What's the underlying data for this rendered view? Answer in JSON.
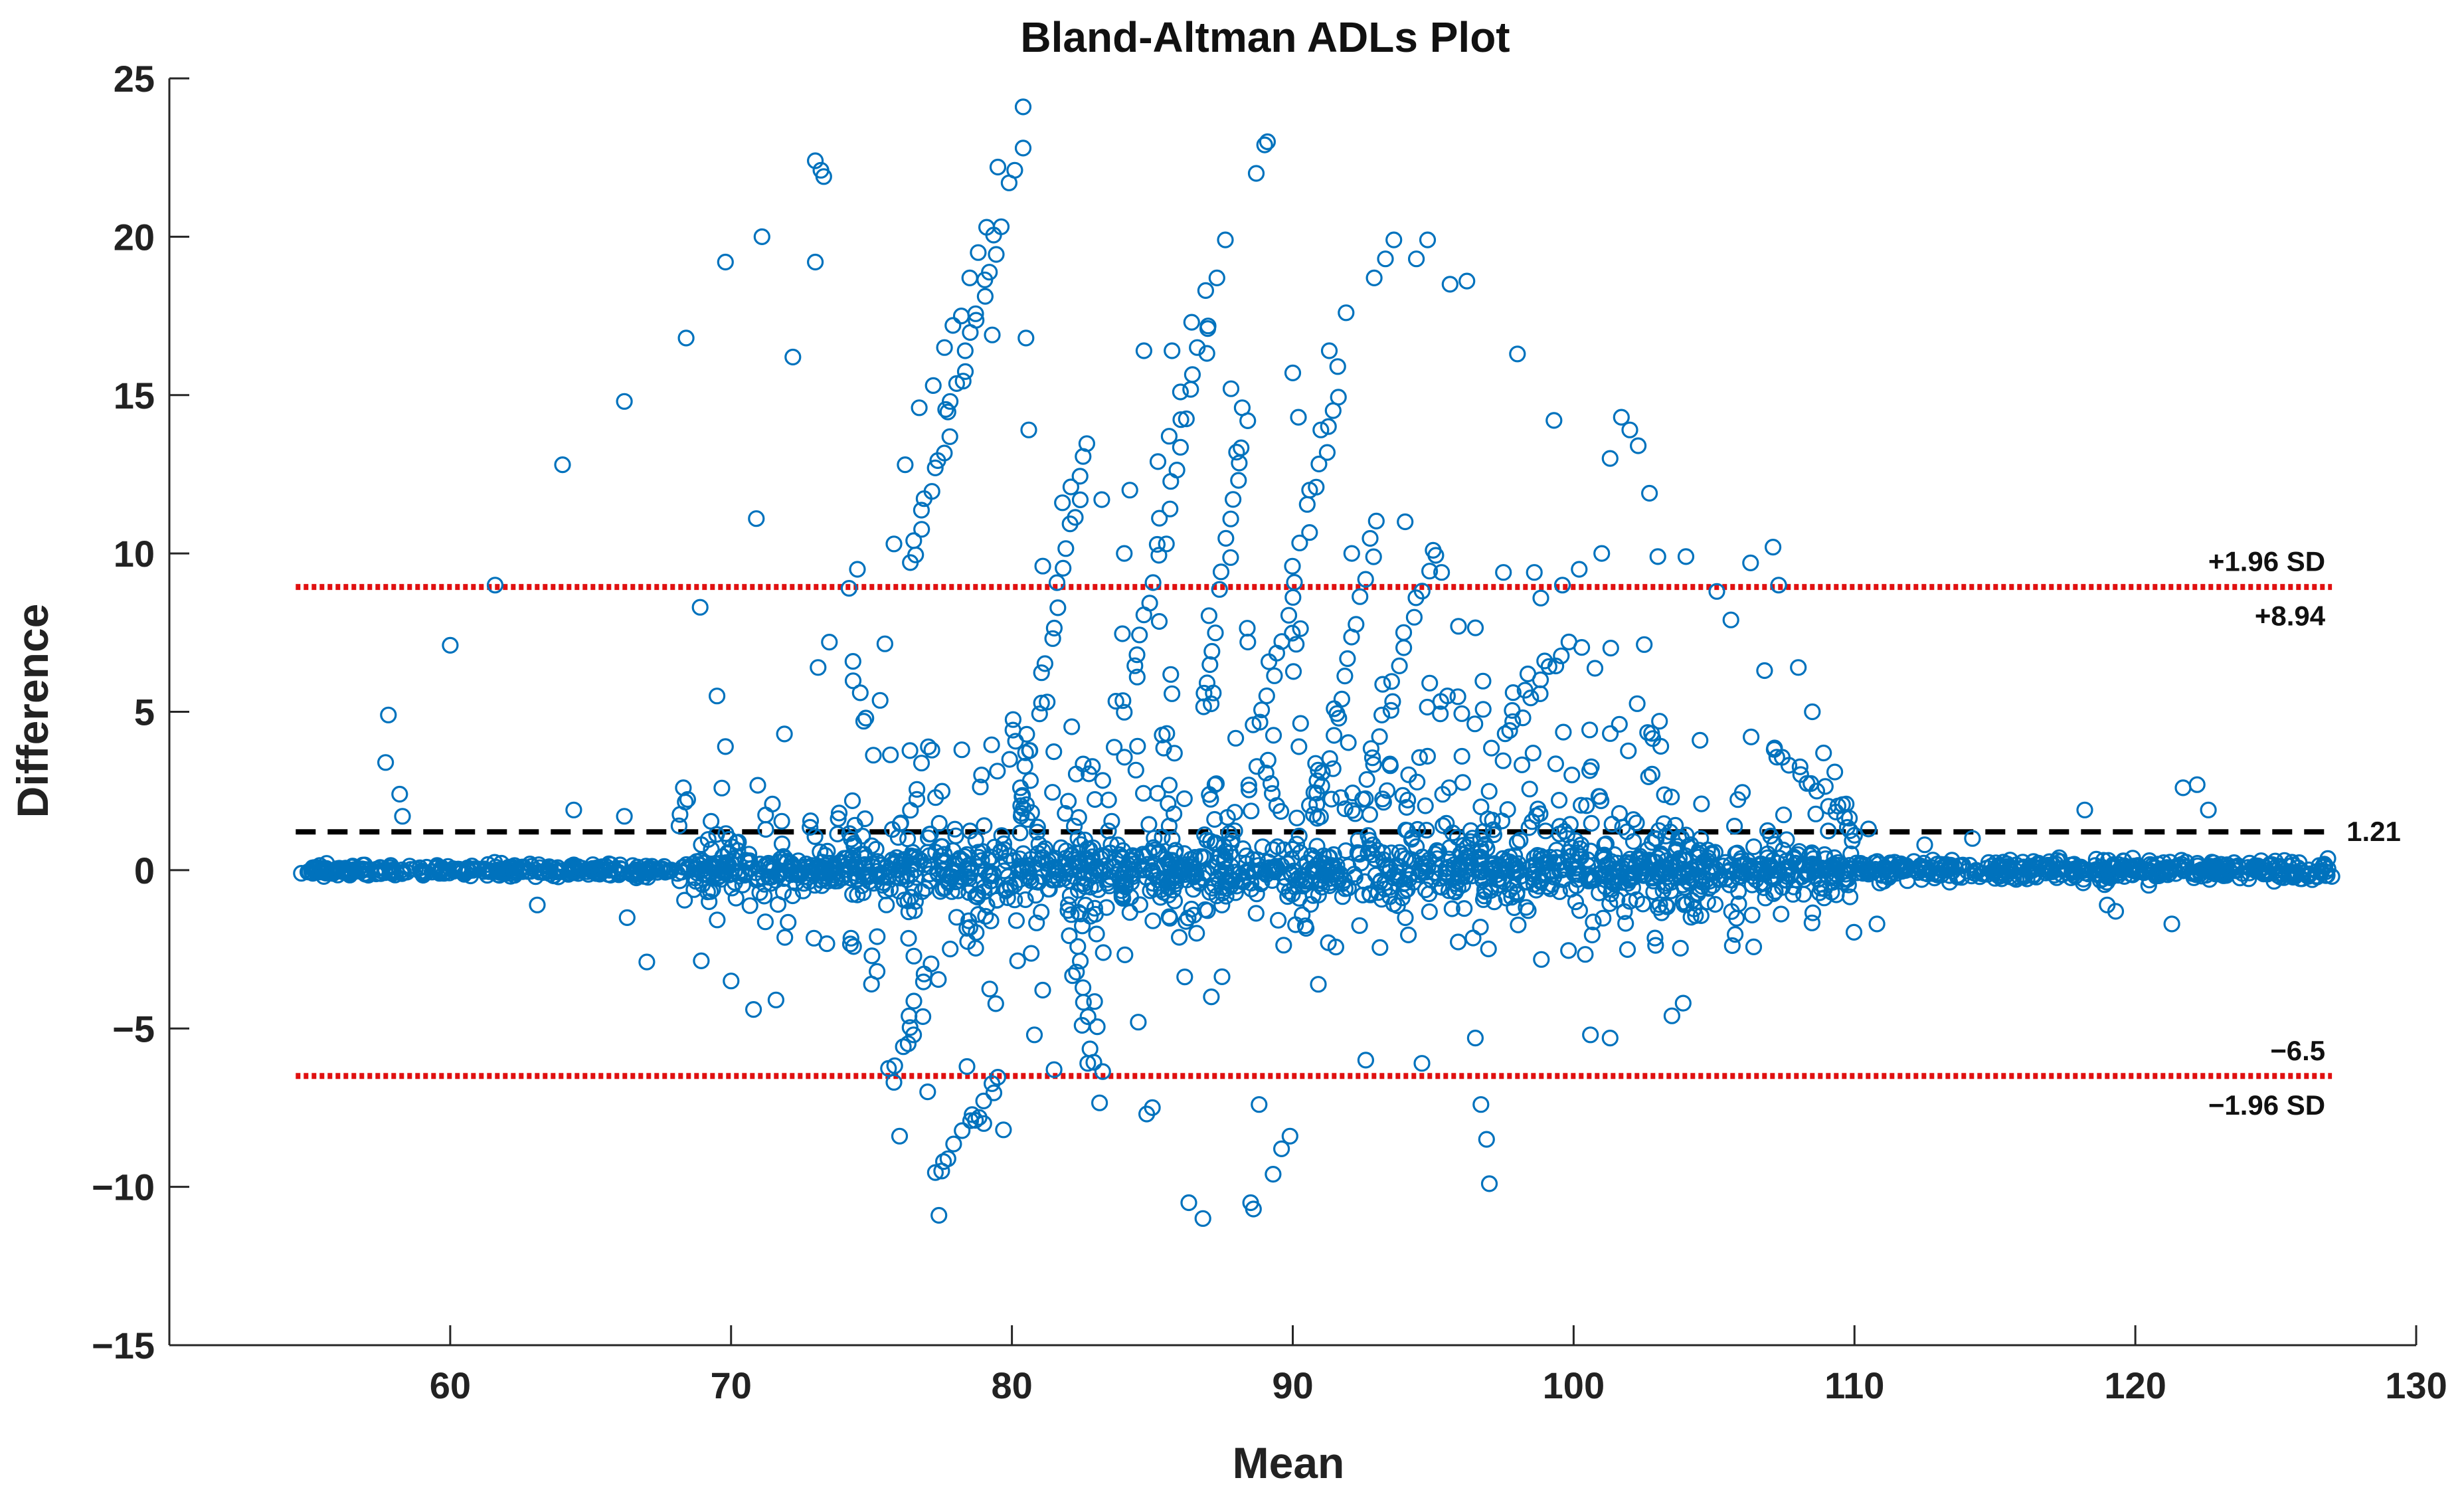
{
  "chart_data": {
    "type": "scatter",
    "title": "Bland-Altman ADLs Plot",
    "xlabel": "Mean",
    "ylabel": "Difference",
    "xlim": [
      50,
      130
    ],
    "ylim": [
      -15,
      25
    ],
    "xticks": [
      60,
      70,
      80,
      90,
      100,
      110,
      120,
      130
    ],
    "yticks": [
      -15,
      -10,
      -5,
      0,
      5,
      10,
      15,
      20,
      25
    ],
    "grid": false,
    "marker": "open-circle",
    "marker_color": "#0072BD",
    "reference_lines": [
      {
        "id": "upper",
        "y": 8.94,
        "style": "dotted",
        "color": "#E01010",
        "label_top": "+1.96 SD",
        "label_bottom": "+8.94"
      },
      {
        "id": "mean",
        "y": 1.21,
        "style": "dashed",
        "color": "#000000",
        "label_right": "1.21"
      },
      {
        "id": "lower",
        "y": -6.5,
        "style": "dotted",
        "color": "#E01010",
        "label_top": "−6.5",
        "label_bottom": "−1.96 SD"
      }
    ],
    "ref_line_x_range": [
      54.5,
      127
    ],
    "points_note": "approx. 3000 open-circle points; outliers listed below, dense band near zero",
    "outliers": [
      [
        54.7,
        -0.1
      ],
      [
        55.5,
        -0.2
      ],
      [
        56.5,
        0.1
      ],
      [
        57.8,
        4.9
      ],
      [
        57.7,
        3.4
      ],
      [
        58.2,
        2.4
      ],
      [
        58.3,
        1.7
      ],
      [
        60.0,
        7.1
      ],
      [
        61.6,
        9.0
      ],
      [
        63.1,
        -1.1
      ],
      [
        64.0,
        12.8
      ],
      [
        64.4,
        1.9
      ],
      [
        66.2,
        14.8
      ],
      [
        66.2,
        1.7
      ],
      [
        66.3,
        -1.5
      ],
      [
        67.0,
        -2.9
      ],
      [
        68.3,
        2.6
      ],
      [
        68.4,
        16.8
      ],
      [
        68.9,
        8.3
      ],
      [
        69.5,
        5.5
      ],
      [
        69.8,
        3.9
      ],
      [
        69.8,
        19.2
      ],
      [
        70.0,
        -3.5
      ],
      [
        70.8,
        -4.4
      ],
      [
        70.9,
        11.1
      ],
      [
        71.1,
        20.0
      ],
      [
        71.6,
        -4.1
      ],
      [
        71.9,
        4.3
      ],
      [
        72.2,
        16.2
      ],
      [
        73.0,
        19.2
      ],
      [
        73.0,
        22.4
      ],
      [
        73.2,
        22.1
      ],
      [
        73.3,
        21.9
      ],
      [
        73.5,
        7.2
      ],
      [
        73.1,
        6.4
      ],
      [
        74.2,
        8.9
      ],
      [
        74.5,
        9.5
      ],
      [
        74.6,
        5.6
      ],
      [
        74.8,
        4.8
      ],
      [
        75.0,
        -3.6
      ],
      [
        75.2,
        -3.2
      ],
      [
        75.8,
        10.3
      ],
      [
        75.8,
        -6.7
      ],
      [
        76.0,
        -8.4
      ],
      [
        76.2,
        12.8
      ],
      [
        76.5,
        -5.2
      ],
      [
        76.7,
        14.6
      ],
      [
        77.0,
        -7.0
      ],
      [
        77.2,
        15.3
      ],
      [
        77.5,
        -9.5
      ],
      [
        77.4,
        -10.9
      ],
      [
        77.6,
        16.5
      ],
      [
        77.8,
        14.8
      ],
      [
        77.9,
        17.2
      ],
      [
        78.2,
        17.5
      ],
      [
        78.4,
        -6.2
      ],
      [
        78.5,
        18.7
      ],
      [
        78.7,
        -7.9
      ],
      [
        78.8,
        19.5
      ],
      [
        79.0,
        -8.0
      ],
      [
        79.1,
        20.3
      ],
      [
        79.3,
        16.9
      ],
      [
        79.5,
        22.2
      ],
      [
        79.7,
        -8.2
      ],
      [
        79.9,
        21.7
      ],
      [
        80.1,
        22.1
      ],
      [
        80.4,
        22.8
      ],
      [
        80.4,
        24.1
      ],
      [
        80.5,
        16.8
      ],
      [
        80.6,
        13.9
      ],
      [
        80.8,
        -5.2
      ],
      [
        81.1,
        9.6
      ],
      [
        81.5,
        -6.3
      ],
      [
        81.8,
        11.6
      ],
      [
        82.1,
        12.1
      ],
      [
        82.5,
        -4.9
      ],
      [
        82.7,
        -6.1
      ],
      [
        83.2,
        11.7
      ],
      [
        84.0,
        10.0
      ],
      [
        84.2,
        12.0
      ],
      [
        84.5,
        -4.8
      ],
      [
        84.8,
        -7.7
      ],
      [
        84.7,
        16.4
      ],
      [
        85.0,
        -7.5
      ],
      [
        85.2,
        12.9
      ],
      [
        85.5,
        10.3
      ],
      [
        85.6,
        13.7
      ],
      [
        85.7,
        16.4
      ],
      [
        86.0,
        15.1
      ],
      [
        86.3,
        -10.5
      ],
      [
        86.4,
        17.3
      ],
      [
        86.6,
        16.5
      ],
      [
        86.8,
        -11.0
      ],
      [
        86.9,
        18.3
      ],
      [
        87.1,
        -4.0
      ],
      [
        87.3,
        18.7
      ],
      [
        87.6,
        19.9
      ],
      [
        87.8,
        15.2
      ],
      [
        88.0,
        13.2
      ],
      [
        88.2,
        14.6
      ],
      [
        88.5,
        -10.5
      ],
      [
        88.6,
        -10.7
      ],
      [
        88.7,
        22.0
      ],
      [
        88.8,
        -7.4
      ],
      [
        89.0,
        22.9
      ],
      [
        89.1,
        23.0
      ],
      [
        89.3,
        -9.6
      ],
      [
        89.6,
        -8.8
      ],
      [
        89.9,
        -8.4
      ],
      [
        90.0,
        15.7
      ],
      [
        90.2,
        14.3
      ],
      [
        90.6,
        12.0
      ],
      [
        91.0,
        13.9
      ],
      [
        91.3,
        16.4
      ],
      [
        91.6,
        15.9
      ],
      [
        91.9,
        17.6
      ],
      [
        92.1,
        10.0
      ],
      [
        92.6,
        -6.0
      ],
      [
        92.9,
        18.7
      ],
      [
        93.3,
        19.3
      ],
      [
        93.6,
        19.9
      ],
      [
        94.0,
        11.0
      ],
      [
        94.4,
        19.3
      ],
      [
        94.6,
        -6.1
      ],
      [
        94.8,
        19.9
      ],
      [
        95.0,
        10.1
      ],
      [
        95.3,
        9.4
      ],
      [
        95.6,
        18.5
      ],
      [
        95.9,
        7.7
      ],
      [
        96.2,
        18.6
      ],
      [
        96.5,
        -5.3
      ],
      [
        96.7,
        -7.4
      ],
      [
        96.9,
        -8.5
      ],
      [
        97.0,
        -9.9
      ],
      [
        97.5,
        9.4
      ],
      [
        98.0,
        16.3
      ],
      [
        98.6,
        9.4
      ],
      [
        99.3,
        14.2
      ],
      [
        99.6,
        9.0
      ],
      [
        100.2,
        9.5
      ],
      [
        100.6,
        -5.2
      ],
      [
        101.0,
        10.0
      ],
      [
        101.3,
        13.0
      ],
      [
        101.3,
        -5.3
      ],
      [
        101.7,
        14.3
      ],
      [
        102.0,
        13.9
      ],
      [
        102.3,
        13.4
      ],
      [
        102.7,
        11.9
      ],
      [
        103.0,
        9.9
      ],
      [
        103.5,
        -4.6
      ],
      [
        103.9,
        -4.2
      ],
      [
        104.0,
        9.9
      ],
      [
        104.5,
        4.1
      ],
      [
        105.1,
        8.8
      ],
      [
        105.6,
        7.9
      ],
      [
        106.3,
        9.7
      ],
      [
        106.8,
        6.3
      ],
      [
        107.1,
        10.2
      ],
      [
        107.3,
        9.0
      ],
      [
        108.0,
        6.4
      ],
      [
        108.5,
        5.0
      ],
      [
        108.9,
        3.7
      ],
      [
        109.3,
        3.1
      ],
      [
        110.0,
        1.1
      ],
      [
        110.5,
        1.3
      ],
      [
        110.8,
        -1.7
      ],
      [
        112.5,
        0.8
      ],
      [
        114.2,
        1.0
      ],
      [
        118.2,
        1.9
      ],
      [
        119.0,
        -1.1
      ],
      [
        119.3,
        -1.3
      ],
      [
        120.5,
        0.3
      ],
      [
        121.3,
        -1.7
      ],
      [
        121.7,
        2.6
      ],
      [
        122.2,
        2.7
      ],
      [
        122.6,
        1.9
      ],
      [
        124.2,
        0.1
      ],
      [
        126.3,
        -0.3
      ],
      [
        127.0,
        -0.2
      ]
    ]
  }
}
